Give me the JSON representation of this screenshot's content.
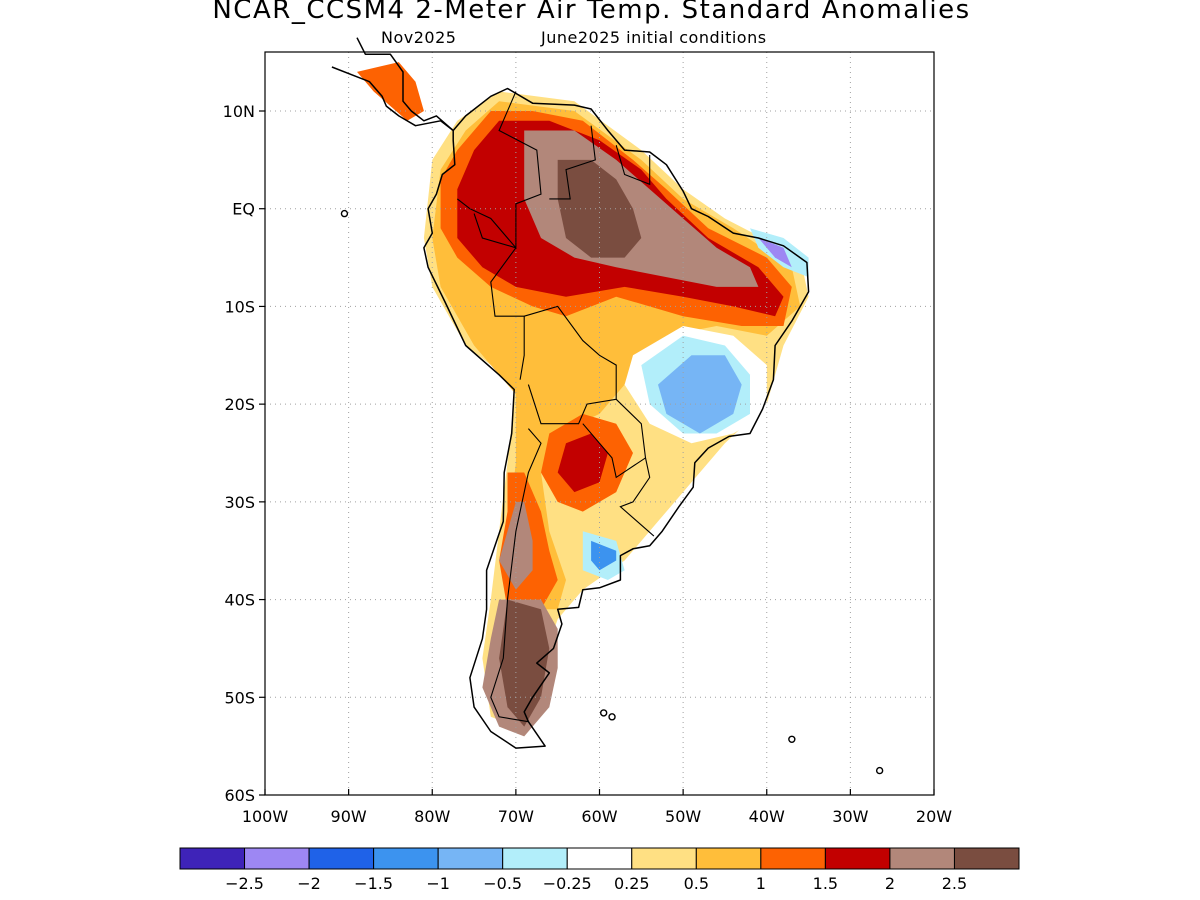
{
  "title": "NCAR_CCSM4 2-Meter Air Temp. Standard Anomalies",
  "subtitle_left": "Nov2025",
  "subtitle_right": "June2025 initial conditions",
  "map": {
    "region": "South America",
    "projection": "lat-lon",
    "lon_range": [
      -100,
      -20
    ],
    "lat_range": [
      -60,
      15
    ],
    "gridlines": true,
    "lat_ticks": [
      {
        "value": 10,
        "label": "10N"
      },
      {
        "value": 0,
        "label": "EQ"
      },
      {
        "value": -10,
        "label": "10S"
      },
      {
        "value": -20,
        "label": "20S"
      },
      {
        "value": -30,
        "label": "30S"
      },
      {
        "value": -40,
        "label": "40S"
      },
      {
        "value": -50,
        "label": "50S"
      },
      {
        "value": -60,
        "label": "60S"
      }
    ],
    "lon_ticks": [
      {
        "value": -100,
        "label": "100W"
      },
      {
        "value": -90,
        "label": "90W"
      },
      {
        "value": -80,
        "label": "80W"
      },
      {
        "value": -70,
        "label": "70W"
      },
      {
        "value": -60,
        "label": "60W"
      },
      {
        "value": -50,
        "label": "50W"
      },
      {
        "value": -40,
        "label": "40W"
      },
      {
        "value": -30,
        "label": "30W"
      },
      {
        "value": -20,
        "label": "20W"
      }
    ]
  },
  "legend": {
    "colors": [
      "#3e23b8",
      "#9d87f3",
      "#1f62e8",
      "#3c93ef",
      "#76b5f5",
      "#b2eefa",
      "#ffffff",
      "#ffe083",
      "#ffbe3a",
      "#fd6202",
      "#c20000",
      "#b2877a",
      "#7a4d40"
    ],
    "labels": [
      "-2.5",
      "-2",
      "-1.5",
      "-1",
      "-0.5",
      "-0.25",
      "0.25",
      "0.5",
      "1",
      "1.5",
      "2",
      "2.5"
    ]
  },
  "colors": {
    "land_outline": "#000000",
    "gridline": "#a0a0a0",
    "frame": "#000000"
  }
}
